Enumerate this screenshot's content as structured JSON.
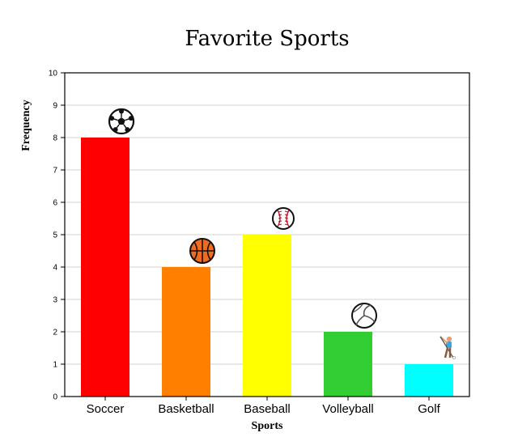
{
  "chart_data": {
    "type": "bar",
    "title": "Favorite Sports",
    "xlabel": "Sports",
    "ylabel": "Frequency",
    "categories": [
      "Soccer",
      "Basketball",
      "Baseball",
      "Volleyball",
      "Golf"
    ],
    "values": [
      8,
      4,
      5,
      2,
      1
    ],
    "colors": [
      "#ff0000",
      "#ff7f00",
      "#ffff00",
      "#32cd32",
      "#00ffff"
    ],
    "icons": [
      "soccer-ball-icon",
      "basketball-icon",
      "baseball-icon",
      "volleyball-icon",
      "golfer-icon"
    ],
    "ylim": [
      0,
      10
    ],
    "yticks": [
      0,
      1,
      2,
      3,
      4,
      5,
      6,
      7,
      8,
      9,
      10
    ],
    "grid": true,
    "legend": "none"
  }
}
